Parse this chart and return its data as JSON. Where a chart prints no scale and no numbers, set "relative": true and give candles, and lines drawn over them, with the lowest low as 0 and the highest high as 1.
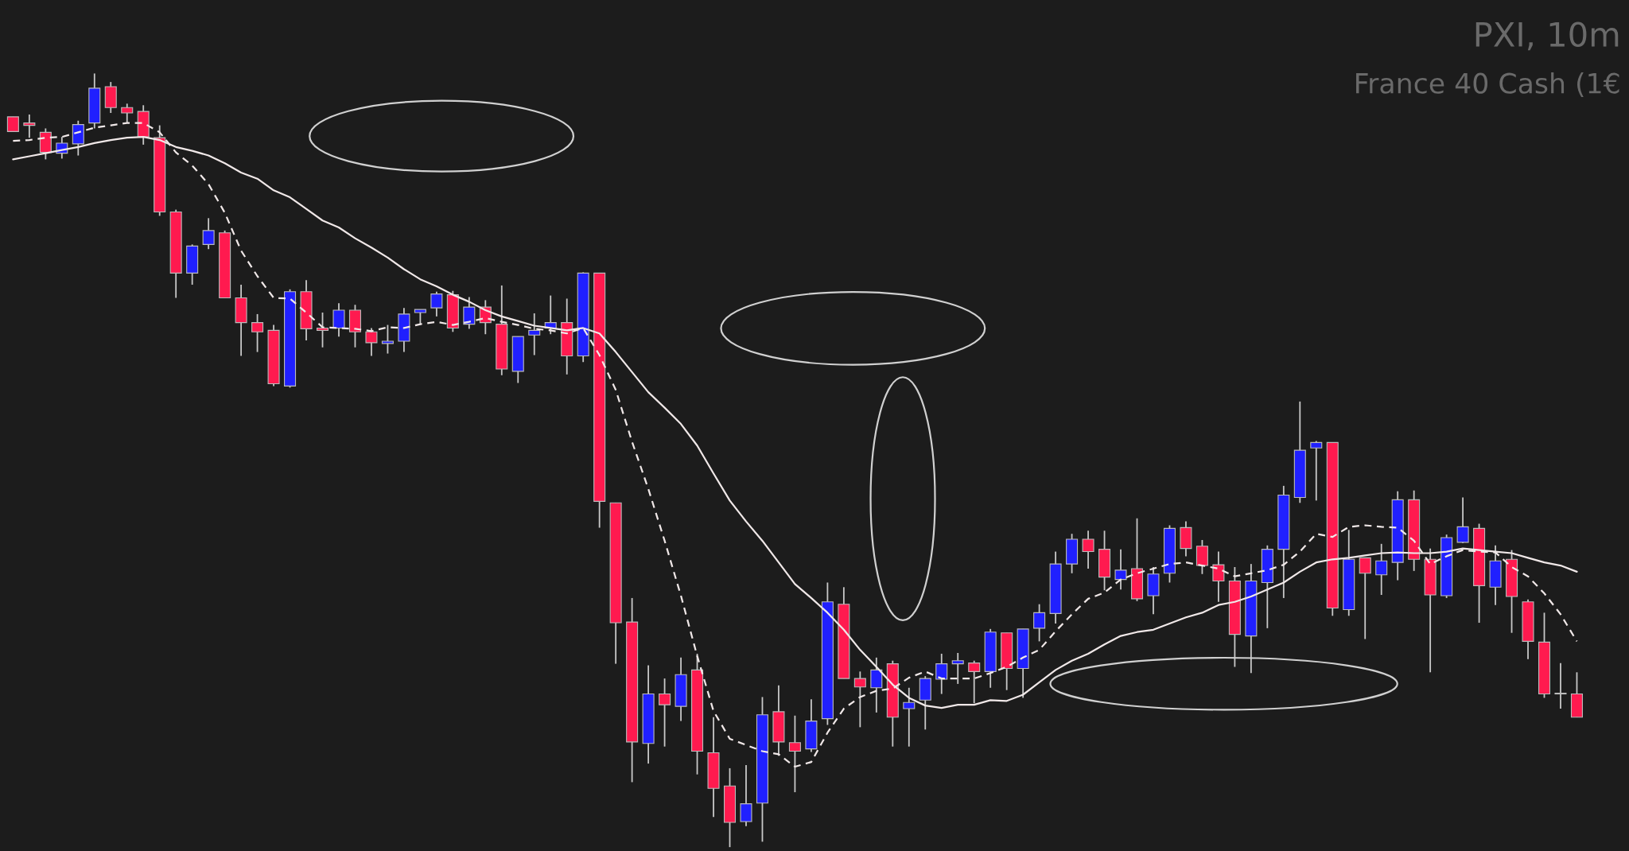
{
  "chart_data": {
    "type": "candlestick",
    "title": "PXI, 10m",
    "subtitle": "France 40 Cash (1€",
    "relative": true,
    "categories": [
      null,
      null,
      null,
      null,
      null,
      null,
      null,
      null,
      null,
      null,
      null,
      null,
      null,
      null,
      null,
      null,
      null,
      null,
      null,
      null,
      null,
      null,
      null,
      null,
      null,
      null,
      null,
      null,
      null,
      null,
      null,
      null,
      null,
      null,
      null,
      null,
      null,
      null,
      null,
      null,
      null,
      null,
      null,
      null,
      null,
      null,
      null,
      null,
      null,
      null,
      null,
      null,
      null,
      null,
      null,
      null,
      null,
      null,
      null,
      null,
      null,
      null,
      null,
      null,
      null,
      null,
      null,
      null,
      null,
      null,
      null,
      null,
      null,
      null,
      null,
      null,
      null,
      null,
      null,
      null,
      null,
      null,
      null,
      null,
      null,
      null,
      null,
      null,
      null,
      null,
      null,
      null,
      null,
      null,
      null,
      null,
      null
    ],
    "ohlc": [
      [
        0.944,
        0.944,
        0.925,
        0.925
      ],
      [
        0.936,
        0.947,
        0.917,
        0.933
      ],
      [
        0.924,
        0.929,
        0.889,
        0.898
      ],
      [
        0.897,
        0.918,
        0.89,
        0.91
      ],
      [
        0.909,
        0.939,
        0.894,
        0.934
      ],
      [
        0.936,
        1.0,
        0.929,
        0.981
      ],
      [
        0.983,
        0.989,
        0.949,
        0.956
      ],
      [
        0.956,
        0.961,
        0.936,
        0.949
      ],
      [
        0.951,
        0.959,
        0.908,
        0.918
      ],
      [
        0.917,
        0.933,
        0.816,
        0.821
      ],
      [
        0.821,
        0.824,
        0.71,
        0.742
      ],
      [
        0.742,
        0.779,
        0.727,
        0.777
      ],
      [
        0.779,
        0.813,
        0.773,
        0.797
      ],
      [
        0.794,
        0.797,
        0.71,
        0.71
      ],
      [
        0.71,
        0.727,
        0.635,
        0.678
      ],
      [
        0.678,
        0.689,
        0.64,
        0.666
      ],
      [
        0.668,
        0.675,
        0.596,
        0.599
      ],
      [
        0.596,
        0.721,
        0.594,
        0.718
      ],
      [
        0.718,
        0.733,
        0.655,
        0.67
      ],
      [
        0.671,
        0.691,
        0.646,
        0.668
      ],
      [
        0.671,
        0.703,
        0.66,
        0.694
      ],
      [
        0.694,
        0.701,
        0.646,
        0.666
      ],
      [
        0.666,
        0.671,
        0.635,
        0.652
      ],
      [
        0.651,
        0.675,
        0.638,
        0.654
      ],
      [
        0.654,
        0.697,
        0.64,
        0.689
      ],
      [
        0.691,
        0.695,
        0.675,
        0.695
      ],
      [
        0.697,
        0.718,
        0.686,
        0.715
      ],
      [
        0.714,
        0.719,
        0.666,
        0.671
      ],
      [
        0.676,
        0.711,
        0.67,
        0.698
      ],
      [
        0.698,
        0.707,
        0.663,
        0.678
      ],
      [
        0.676,
        0.726,
        0.61,
        0.618
      ],
      [
        0.615,
        0.66,
        0.6,
        0.66
      ],
      [
        0.662,
        0.69,
        0.636,
        0.668
      ],
      [
        0.671,
        0.713,
        0.663,
        0.678
      ],
      [
        0.678,
        0.709,
        0.611,
        0.635
      ],
      [
        0.635,
        0.743,
        0.627,
        0.742
      ],
      [
        0.742,
        0.742,
        0.413,
        0.447
      ],
      [
        0.445,
        0.445,
        0.237,
        0.29
      ],
      [
        0.291,
        0.322,
        0.084,
        0.136
      ],
      [
        0.134,
        0.235,
        0.108,
        0.198
      ],
      [
        0.198,
        0.218,
        0.13,
        0.184
      ],
      [
        0.182,
        0.245,
        0.163,
        0.223
      ],
      [
        0.229,
        0.25,
        0.094,
        0.124
      ],
      [
        0.122,
        0.168,
        0.039,
        0.076
      ],
      [
        0.079,
        0.102,
        0,
        0.032
      ],
      [
        0.033,
        0.106,
        0.027,
        0.056
      ],
      [
        0.057,
        0.194,
        0.007,
        0.171
      ],
      [
        0.175,
        0.209,
        0.118,
        0.136
      ],
      [
        0.135,
        0.17,
        0.071,
        0.124
      ],
      [
        0.127,
        0.191,
        0.123,
        0.163
      ],
      [
        0.166,
        0.342,
        0.158,
        0.317
      ],
      [
        0.314,
        0.336,
        0.218,
        0.218
      ],
      [
        0.218,
        0.227,
        0.155,
        0.207
      ],
      [
        0.206,
        0.245,
        0.174,
        0.229
      ],
      [
        0.237,
        0.241,
        0.13,
        0.168
      ],
      [
        0.179,
        0.206,
        0.13,
        0.187
      ],
      [
        0.19,
        0.221,
        0.152,
        0.218
      ],
      [
        0.217,
        0.25,
        0.198,
        0.237
      ],
      [
        0.237,
        0.251,
        0.211,
        0.241
      ],
      [
        0.238,
        0.241,
        0.186,
        0.227
      ],
      [
        0.227,
        0.282,
        0.206,
        0.278
      ],
      [
        0.277,
        0.277,
        0.203,
        0.231
      ],
      [
        0.231,
        0.282,
        0.193,
        0.282
      ],
      [
        0.283,
        0.314,
        0.266,
        0.303
      ],
      [
        0.302,
        0.382,
        0.289,
        0.366
      ],
      [
        0.366,
        0.405,
        0.354,
        0.398
      ],
      [
        0.398,
        0.409,
        0.36,
        0.382
      ],
      [
        0.385,
        0.409,
        0.332,
        0.349
      ],
      [
        0.346,
        0.385,
        0.333,
        0.358
      ],
      [
        0.36,
        0.425,
        0.318,
        0.321
      ],
      [
        0.325,
        0.362,
        0.301,
        0.353
      ],
      [
        0.354,
        0.416,
        0.342,
        0.412
      ],
      [
        0.413,
        0.421,
        0.376,
        0.386
      ],
      [
        0.389,
        0.397,
        0.353,
        0.364
      ],
      [
        0.365,
        0.382,
        0.317,
        0.344
      ],
      [
        0.344,
        0.362,
        0.233,
        0.275
      ],
      [
        0.273,
        0.366,
        0.225,
        0.344
      ],
      [
        0.342,
        0.39,
        0.283,
        0.385
      ],
      [
        0.385,
        0.467,
        0.322,
        0.455
      ],
      [
        0.452,
        0.576,
        0.445,
        0.513
      ],
      [
        0.516,
        0.525,
        0.448,
        0.523
      ],
      [
        0.523,
        0.523,
        0.299,
        0.309
      ],
      [
        0.307,
        0.41,
        0.299,
        0.372
      ],
      [
        0.374,
        0.374,
        0.269,
        0.354
      ],
      [
        0.352,
        0.392,
        0.326,
        0.37
      ],
      [
        0.368,
        0.46,
        0.345,
        0.449
      ],
      [
        0.449,
        0.461,
        0.357,
        0.372
      ],
      [
        0.372,
        0.386,
        0.226,
        0.326
      ],
      [
        0.325,
        0.404,
        0.322,
        0.4
      ],
      [
        0.394,
        0.452,
        0.393,
        0.414
      ],
      [
        0.412,
        0.418,
        0.29,
        0.338
      ],
      [
        0.336,
        0.39,
        0.313,
        0.37
      ],
      [
        0.372,
        0.384,
        0.277,
        0.324
      ],
      [
        0.317,
        0.32,
        0.243,
        0.266
      ],
      [
        0.265,
        0.303,
        0.193,
        0.198
      ],
      [
        0.199,
        0.238,
        0.179,
        0.198
      ],
      [
        0.198,
        0.226,
        0.168,
        0.168
      ]
    ],
    "colors": [
      "#ff1a4f",
      "#ff1a4f",
      "#ff1a4f",
      "#2020ff",
      "#2020ff",
      "#2020ff",
      "#ff1a4f",
      "#ff1a4f",
      "#ff1a4f",
      "#ff1a4f",
      "#ff1a4f",
      "#2020ff",
      "#2020ff",
      "#ff1a4f",
      "#ff1a4f",
      "#ff1a4f",
      "#ff1a4f",
      "#2020ff",
      "#ff1a4f",
      "#ff1a4f",
      "#2020ff",
      "#ff1a4f",
      "#ff1a4f",
      "#2020ff",
      "#2020ff",
      "#2020ff",
      "#2020ff",
      "#ff1a4f",
      "#2020ff",
      "#ff1a4f",
      "#ff1a4f",
      "#2020ff",
      "#2020ff",
      "#2020ff",
      "#ff1a4f",
      "#2020ff",
      "#ff1a4f",
      "#ff1a4f",
      "#ff1a4f",
      "#2020ff",
      "#ff1a4f",
      "#2020ff",
      "#ff1a4f",
      "#ff1a4f",
      "#ff1a4f",
      "#2020ff",
      "#2020ff",
      "#ff1a4f",
      "#ff1a4f",
      "#2020ff",
      "#2020ff",
      "#ff1a4f",
      "#ff1a4f",
      "#2020ff",
      "#ff1a4f",
      "#2020ff",
      "#2020ff",
      "#2020ff",
      "#2020ff",
      "#ff1a4f",
      "#2020ff",
      "#ff1a4f",
      "#2020ff",
      "#2020ff",
      "#2020ff",
      "#2020ff",
      "#ff1a4f",
      "#ff1a4f",
      "#2020ff",
      "#ff1a4f",
      "#2020ff",
      "#2020ff",
      "#ff1a4f",
      "#ff1a4f",
      "#ff1a4f",
      "#ff1a4f",
      "#2020ff",
      "#2020ff",
      "#2020ff",
      "#2020ff",
      "#2020ff",
      "#ff1a4f",
      "#2020ff",
      "#ff1a4f",
      "#2020ff",
      "#2020ff",
      "#ff1a4f",
      "#ff1a4f",
      "#2020ff",
      "#2020ff",
      "#ff1a4f",
      "#2020ff",
      "#ff1a4f",
      "#ff1a4f",
      "#ff1a4f",
      "#ff1a4f",
      "#ff1a4f"
    ],
    "series": [
      {
        "type": "line",
        "color": "#f0e8e8",
        "line_style": "solid",
        "values": [
          0.889,
          0.893,
          0.897,
          0.901,
          0.905,
          0.91,
          0.914,
          0.917,
          0.918,
          0.914,
          0.905,
          0.9,
          0.894,
          0.884,
          0.872,
          0.864,
          0.849,
          0.84,
          0.825,
          0.81,
          0.801,
          0.787,
          0.775,
          0.762,
          0.747,
          0.734,
          0.725,
          0.714,
          0.705,
          0.694,
          0.686,
          0.68,
          0.674,
          0.671,
          0.668,
          0.671,
          0.664,
          0.64,
          0.614,
          0.588,
          0.568,
          0.547,
          0.519,
          0.483,
          0.448,
          0.421,
          0.396,
          0.368,
          0.34,
          0.322,
          0.303,
          0.281,
          0.255,
          0.233,
          0.21,
          0.193,
          0.183,
          0.18,
          0.184,
          0.184,
          0.19,
          0.189,
          0.197,
          0.213,
          0.229,
          0.241,
          0.25,
          0.262,
          0.273,
          0.278,
          0.281,
          0.289,
          0.297,
          0.303,
          0.313,
          0.317,
          0.324,
          0.333,
          0.342,
          0.356,
          0.368,
          0.372,
          0.374,
          0.377,
          0.38,
          0.381,
          0.38,
          0.38,
          0.382,
          0.386,
          0.384,
          0.382,
          0.38,
          0.374,
          0.368,
          0.364,
          0.356
        ]
      },
      {
        "type": "line",
        "color": "#f0e8e8",
        "line_style": "dashed",
        "values": [
          0.913,
          0.914,
          0.917,
          0.918,
          0.924,
          0.93,
          0.933,
          0.936,
          0.936,
          0.924,
          0.898,
          0.881,
          0.857,
          0.82,
          0.771,
          0.738,
          0.71,
          0.709,
          0.691,
          0.672,
          0.671,
          0.67,
          0.667,
          0.672,
          0.671,
          0.676,
          0.679,
          0.675,
          0.679,
          0.684,
          0.679,
          0.675,
          0.67,
          0.668,
          0.664,
          0.671,
          0.636,
          0.591,
          0.524,
          0.463,
          0.396,
          0.325,
          0.247,
          0.176,
          0.14,
          0.132,
          0.124,
          0.12,
          0.104,
          0.11,
          0.148,
          0.179,
          0.194,
          0.202,
          0.205,
          0.219,
          0.227,
          0.218,
          0.218,
          0.218,
          0.225,
          0.233,
          0.245,
          0.255,
          0.279,
          0.301,
          0.321,
          0.329,
          0.346,
          0.354,
          0.36,
          0.366,
          0.368,
          0.364,
          0.36,
          0.35,
          0.354,
          0.358,
          0.365,
          0.382,
          0.405,
          0.401,
          0.414,
          0.416,
          0.414,
          0.413,
          0.396,
          0.366,
          0.376,
          0.384,
          0.382,
          0.381,
          0.362,
          0.35,
          0.328,
          0.301,
          0.266
        ]
      }
    ]
  }
}
